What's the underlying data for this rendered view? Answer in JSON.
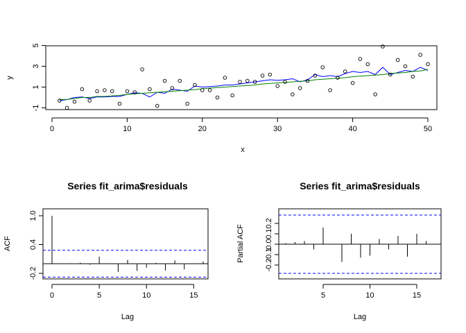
{
  "chart_data": [
    {
      "type": "scatter",
      "title": "",
      "xlabel": "x",
      "ylabel": "y",
      "xlim": [
        0,
        50
      ],
      "ylim": [
        -1,
        5
      ],
      "x_ticks": [
        0,
        10,
        20,
        30,
        40,
        50
      ],
      "y_ticks": [
        -1,
        1,
        3,
        5
      ],
      "grid": false,
      "colors": {
        "points": "#000000",
        "blue_line": "#0000ff",
        "green_line": "#008000"
      },
      "points": [
        [
          1,
          -0.3
        ],
        [
          2,
          -1.0
        ],
        [
          3,
          -0.4
        ],
        [
          4,
          0.8
        ],
        [
          5,
          -0.3
        ],
        [
          6,
          0.6
        ],
        [
          7,
          0.7
        ],
        [
          8,
          0.6
        ],
        [
          9,
          -0.6
        ],
        [
          10,
          0.6
        ],
        [
          11,
          0.5
        ],
        [
          12,
          2.7
        ],
        [
          13,
          0.8
        ],
        [
          14,
          -0.8
        ],
        [
          15,
          1.6
        ],
        [
          16,
          0.9
        ],
        [
          17,
          1.6
        ],
        [
          18,
          -0.6
        ],
        [
          19,
          1.2
        ],
        [
          20,
          0.7
        ],
        [
          21,
          0.7
        ],
        [
          22,
          0.0
        ],
        [
          23,
          1.9
        ],
        [
          24,
          0.2
        ],
        [
          25,
          1.5
        ],
        [
          26,
          1.6
        ],
        [
          27,
          1.5
        ],
        [
          28,
          2.1
        ],
        [
          29,
          2.2
        ],
        [
          30,
          1.1
        ],
        [
          31,
          1.5
        ],
        [
          32,
          0.3
        ],
        [
          33,
          0.9
        ],
        [
          34,
          1.6
        ],
        [
          35,
          2.1
        ],
        [
          36,
          2.9
        ],
        [
          37,
          0.7
        ],
        [
          38,
          1.9
        ],
        [
          39,
          2.5
        ],
        [
          40,
          1.4
        ],
        [
          41,
          3.7
        ],
        [
          42,
          3.2
        ],
        [
          43,
          0.3
        ],
        [
          44,
          4.9
        ],
        [
          45,
          2.2
        ],
        [
          46,
          3.6
        ],
        [
          47,
          3.0
        ],
        [
          48,
          2.0
        ],
        [
          49,
          4.1
        ],
        [
          50,
          3.2
        ]
      ],
      "series": [
        {
          "values": [
            -0.3,
            -0.2,
            0.0,
            0.05,
            -0.1,
            0.05,
            0.05,
            0.1,
            0.1,
            0.3,
            0.45,
            0.4,
            0.05,
            0.5,
            0.4,
            0.8,
            0.7,
            0.6,
            1.1,
            1.0,
            1.05,
            1.1,
            1.2,
            1.2,
            1.3,
            1.4,
            1.5,
            1.6,
            1.7,
            1.65,
            1.7,
            1.8,
            1.5,
            1.7,
            2.2,
            2.0,
            2.1,
            2.0,
            2.3,
            2.5,
            2.4,
            2.5,
            2.2,
            2.9,
            2.2,
            2.4,
            2.6,
            2.5,
            2.9,
            2.6
          ]
        },
        {
          "values": [
            -0.2,
            -0.18,
            -0.1,
            0.0,
            0.0,
            0.1,
            0.1,
            0.15,
            0.2,
            0.3,
            0.35,
            0.4,
            0.45,
            0.5,
            0.55,
            0.6,
            0.65,
            0.7,
            0.75,
            0.85,
            0.9,
            0.95,
            1.0,
            1.05,
            1.1,
            1.15,
            1.2,
            1.3,
            1.35,
            1.4,
            1.45,
            1.5,
            1.55,
            1.6,
            1.7,
            1.75,
            1.8,
            1.85,
            1.9,
            2.0,
            2.05,
            2.1,
            2.15,
            2.2,
            2.3,
            2.35,
            2.4,
            2.5,
            2.55,
            2.7
          ]
        }
      ]
    },
    {
      "type": "bar",
      "title": "Series  fit_arima$residuals",
      "xlabel": "Lag",
      "ylabel": "ACF",
      "xlim": [
        0,
        16
      ],
      "ylim": [
        -0.3,
        1.0
      ],
      "x_ticks": [
        0,
        5,
        10,
        15
      ],
      "y_ticks": [
        -0.2,
        0.4,
        1.0
      ],
      "y_tick_labels": [
        "-0.2",
        "0.4",
        "1.0"
      ],
      "ci": 0.28,
      "colors": {
        "bars": "#000000",
        "ci": "#0000ff"
      },
      "lags": [
        0,
        1,
        2,
        3,
        4,
        5,
        6,
        7,
        8,
        9,
        10,
        11,
        12,
        13,
        14,
        15,
        16
      ],
      "values": [
        1.0,
        0.01,
        0.01,
        0.02,
        -0.02,
        0.15,
        0.01,
        -0.17,
        0.08,
        -0.15,
        -0.08,
        0.02,
        -0.14,
        0.07,
        -0.12,
        0.01,
        0.05
      ]
    },
    {
      "type": "bar",
      "title": "Series  fit_arima$residuals",
      "xlabel": "Lag",
      "ylabel": "Partial ACF",
      "xlim": [
        1,
        16
      ],
      "ylim": [
        -0.3,
        0.3
      ],
      "x_ticks": [
        5,
        10,
        15
      ],
      "y_ticks": [
        -0.2,
        -0.1,
        0.0,
        0.1,
        0.2
      ],
      "y_tick_labels": [
        "-0.2",
        "-0.1",
        "0.0",
        "0.1",
        "0.2"
      ],
      "ci": 0.28,
      "colors": {
        "bars": "#000000",
        "ci": "#0000ff"
      },
      "lags": [
        1,
        2,
        3,
        4,
        5,
        6,
        7,
        8,
        9,
        10,
        11,
        12,
        13,
        14,
        15,
        16
      ],
      "values": [
        0.01,
        0.02,
        0.03,
        -0.05,
        0.16,
        0.0,
        -0.17,
        0.1,
        -0.13,
        -0.11,
        0.05,
        -0.05,
        0.08,
        -0.12,
        0.1,
        0.03
      ]
    }
  ]
}
